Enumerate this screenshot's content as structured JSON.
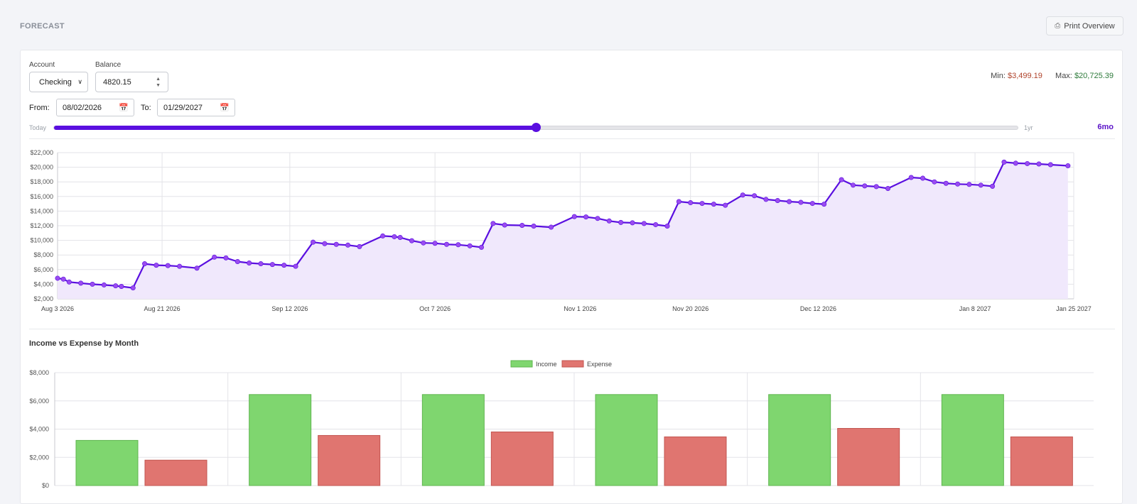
{
  "header": {
    "title": "FORECAST",
    "print_label": "Print Overview",
    "print_icon": "printer-icon"
  },
  "controls": {
    "account_label": "Account",
    "account_value": "Checking",
    "balance_label": "Balance",
    "balance_value": "4820.15",
    "from_label": "From:",
    "from_value": "08/02/2026",
    "to_label": "To:",
    "to_value": "01/29/2027",
    "min_label": "Min:",
    "min_value": "$3,499.19",
    "max_label": "Max:",
    "max_value": "$20,725.39",
    "range_start_label": "Today",
    "range_end_label": "1yr",
    "range_value_label": "6mo",
    "range_fraction": 0.5
  },
  "chart_data": [
    {
      "type": "line",
      "title": "",
      "xlabel": "",
      "ylabel": "",
      "ylim": [
        2000,
        22000
      ],
      "y_ticks": [
        "$2,000",
        "$4,000",
        "$6,000",
        "$8,000",
        "$10,000",
        "$12,000",
        "$14,000",
        "$16,000",
        "$18,000",
        "$20,000",
        "$22,000"
      ],
      "x_ticks": [
        "Aug 3 2026",
        "Aug 21 2026",
        "Sep 12 2026",
        "Oct 7 2026",
        "Nov 1 2026",
        "Nov 20 2026",
        "Dec 12 2026",
        "Jan 8 2027",
        "Jan 25 2027"
      ],
      "grid": true,
      "colors": {
        "line": "#5a0fe0",
        "fill": "#f0e8fc",
        "point": "#9a4cf0"
      },
      "points": [
        [
          "2026-08-03",
          4820
        ],
        [
          "2026-08-04",
          4700
        ],
        [
          "2026-08-05",
          4300
        ],
        [
          "2026-08-07",
          4150
        ],
        [
          "2026-08-09",
          4000
        ],
        [
          "2026-08-11",
          3900
        ],
        [
          "2026-08-13",
          3780
        ],
        [
          "2026-08-14",
          3700
        ],
        [
          "2026-08-16",
          3500
        ],
        [
          "2026-08-18",
          6800
        ],
        [
          "2026-08-20",
          6600
        ],
        [
          "2026-08-22",
          6550
        ],
        [
          "2026-08-24",
          6450
        ],
        [
          "2026-08-27",
          6200
        ],
        [
          "2026-08-30",
          7700
        ],
        [
          "2026-09-01",
          7600
        ],
        [
          "2026-09-03",
          7100
        ],
        [
          "2026-09-05",
          6900
        ],
        [
          "2026-09-07",
          6800
        ],
        [
          "2026-09-09",
          6700
        ],
        [
          "2026-09-11",
          6600
        ],
        [
          "2026-09-13",
          6450
        ],
        [
          "2026-09-16",
          9750
        ],
        [
          "2026-09-18",
          9550
        ],
        [
          "2026-09-20",
          9450
        ],
        [
          "2026-09-22",
          9350
        ],
        [
          "2026-09-24",
          9150
        ],
        [
          "2026-09-28",
          10600
        ],
        [
          "2026-09-30",
          10500
        ],
        [
          "2026-10-01",
          10400
        ],
        [
          "2026-10-03",
          9950
        ],
        [
          "2026-10-05",
          9650
        ],
        [
          "2026-10-07",
          9600
        ],
        [
          "2026-10-09",
          9450
        ],
        [
          "2026-10-11",
          9400
        ],
        [
          "2026-10-13",
          9250
        ],
        [
          "2026-10-15",
          9050
        ],
        [
          "2026-10-17",
          12300
        ],
        [
          "2026-10-19",
          12100
        ],
        [
          "2026-10-22",
          12050
        ],
        [
          "2026-10-24",
          11950
        ],
        [
          "2026-10-27",
          11800
        ],
        [
          "2026-10-31",
          13250
        ],
        [
          "2026-11-02",
          13200
        ],
        [
          "2026-11-04",
          13000
        ],
        [
          "2026-11-06",
          12650
        ],
        [
          "2026-11-08",
          12450
        ],
        [
          "2026-11-10",
          12400
        ],
        [
          "2026-11-12",
          12300
        ],
        [
          "2026-11-14",
          12150
        ],
        [
          "2026-11-16",
          11950
        ],
        [
          "2026-11-18",
          15300
        ],
        [
          "2026-11-20",
          15150
        ],
        [
          "2026-11-22",
          15050
        ],
        [
          "2026-11-24",
          14950
        ],
        [
          "2026-11-26",
          14800
        ],
        [
          "2026-11-29",
          16200
        ],
        [
          "2026-12-01",
          16100
        ],
        [
          "2026-12-03",
          15600
        ],
        [
          "2026-12-05",
          15450
        ],
        [
          "2026-12-07",
          15300
        ],
        [
          "2026-12-09",
          15200
        ],
        [
          "2026-12-11",
          15050
        ],
        [
          "2026-12-13",
          14950
        ],
        [
          "2026-12-16",
          18300
        ],
        [
          "2026-12-18",
          17550
        ],
        [
          "2026-12-20",
          17450
        ],
        [
          "2026-12-22",
          17350
        ],
        [
          "2026-12-24",
          17100
        ],
        [
          "2026-12-28",
          18600
        ],
        [
          "2026-12-30",
          18500
        ],
        [
          "2027-01-01",
          18000
        ],
        [
          "2027-01-03",
          17800
        ],
        [
          "2027-01-05",
          17700
        ],
        [
          "2027-01-07",
          17650
        ],
        [
          "2027-01-09",
          17550
        ],
        [
          "2027-01-11",
          17400
        ],
        [
          "2027-01-13",
          20700
        ],
        [
          "2027-01-15",
          20550
        ],
        [
          "2027-01-17",
          20500
        ],
        [
          "2027-01-19",
          20450
        ],
        [
          "2027-01-21",
          20350
        ],
        [
          "2027-01-24",
          20200
        ]
      ]
    },
    {
      "type": "bar",
      "title": "Income vs Expense by Month",
      "xlabel": "",
      "ylabel": "",
      "ylim": [
        0,
        8000
      ],
      "y_ticks": [
        "$0",
        "$2,000",
        "$4,000",
        "$6,000",
        "$8,000"
      ],
      "legend_position": "top-center",
      "grid": true,
      "categories": [
        "",
        "",
        "",
        "",
        "",
        ""
      ],
      "series": [
        {
          "name": "Income",
          "color": "#7fd66f",
          "values": [
            3200,
            6450,
            6450,
            6450,
            6450,
            6450
          ]
        },
        {
          "name": "Expense",
          "color": "#e07570",
          "values": [
            1800,
            3550,
            3800,
            3450,
            4050,
            3450
          ]
        }
      ]
    }
  ]
}
